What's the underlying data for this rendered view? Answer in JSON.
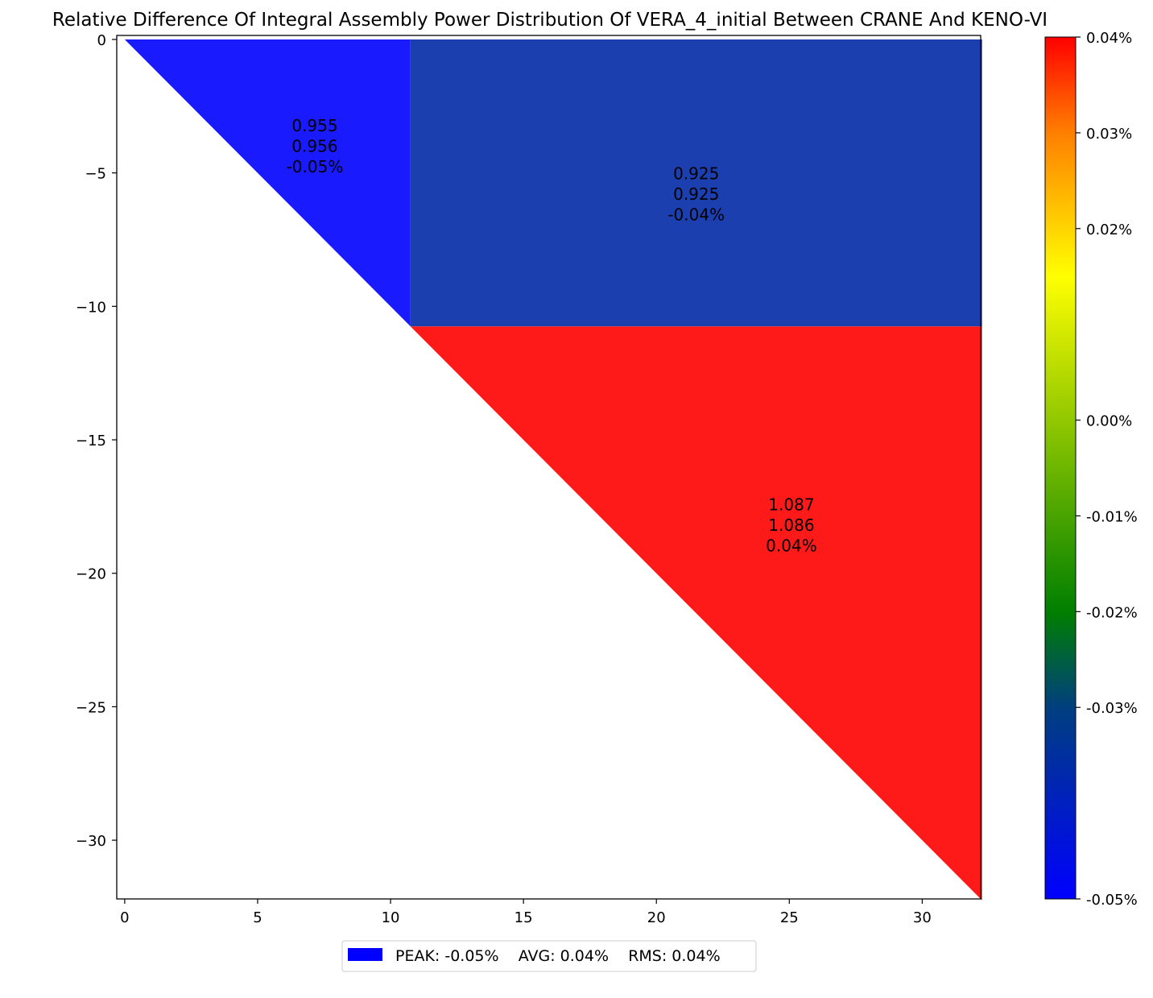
{
  "chart_data": {
    "type": "heatmap",
    "title": "Relative Difference Of Integral Assembly Power Distribution Of VERA_4_initial Between CRANE And KENO-VI",
    "xlabel": "",
    "ylabel": "",
    "xlim": [
      -0.3,
      32.2
    ],
    "ylim": [
      -32.2,
      0.15
    ],
    "xticks": [
      0,
      5,
      10,
      15,
      20,
      25,
      30
    ],
    "xtick_labels": [
      "0",
      "5",
      "10",
      "15",
      "20",
      "25",
      "30"
    ],
    "yticks": [
      0,
      -5,
      -10,
      -15,
      -20,
      -25,
      -30
    ],
    "ytick_labels": [
      "0",
      "−5",
      "−10",
      "−15",
      "−20",
      "−25",
      "−30"
    ],
    "grid": false,
    "regions": [
      {
        "name": "assembly-1",
        "shape": [
          [
            0,
            0
          ],
          [
            10.75,
            0
          ],
          [
            10.75,
            -10.75
          ]
        ],
        "color": "#1a1aff",
        "label_pos": [
          7.15,
          -4.0
        ],
        "labels": [
          "0.955",
          "0.956",
          "-0.05%"
        ]
      },
      {
        "name": "assembly-2",
        "shape": [
          [
            10.75,
            0
          ],
          [
            32.25,
            0
          ],
          [
            32.25,
            -10.75
          ],
          [
            10.75,
            -10.75
          ]
        ],
        "color": "#1c3fb0",
        "label_pos": [
          21.5,
          -5.8
        ],
        "labels": [
          "0.925",
          "0.925",
          "-0.04%"
        ]
      },
      {
        "name": "assembly-3",
        "shape": [
          [
            10.75,
            -10.75
          ],
          [
            32.25,
            -10.75
          ],
          [
            32.25,
            -32.25
          ]
        ],
        "color": "#ff1a1a",
        "label_pos": [
          25.08,
          -18.2
        ],
        "labels": [
          "1.087",
          "1.086",
          "0.04%"
        ]
      }
    ],
    "colorbar": {
      "min": -0.05,
      "max": 0.04,
      "stops": [
        {
          "value": 0.04,
          "color": "#ff0000"
        },
        {
          "value": 0.03,
          "color": "#ff7f00"
        },
        {
          "value": 0.015,
          "color": "#ffff00"
        },
        {
          "value": -0.02,
          "color": "#007f00"
        },
        {
          "value": -0.03,
          "color": "#003f7f"
        },
        {
          "value": -0.05,
          "color": "#0000ff"
        }
      ],
      "ticks": [
        0.04,
        0.03,
        0.02,
        0.0,
        -0.01,
        -0.02,
        -0.03,
        -0.05
      ],
      "tick_labels": [
        "0.04%",
        "0.03%",
        "0.02%",
        "0.00%",
        "-0.01%",
        "-0.02%",
        "-0.03%",
        "-0.05%"
      ]
    },
    "legend": {
      "placement": "bottom-center",
      "swatch_color": "#0000ff",
      "text": "PEAK: -0.05%    AVG: 0.04%    RMS: 0.04%"
    }
  }
}
